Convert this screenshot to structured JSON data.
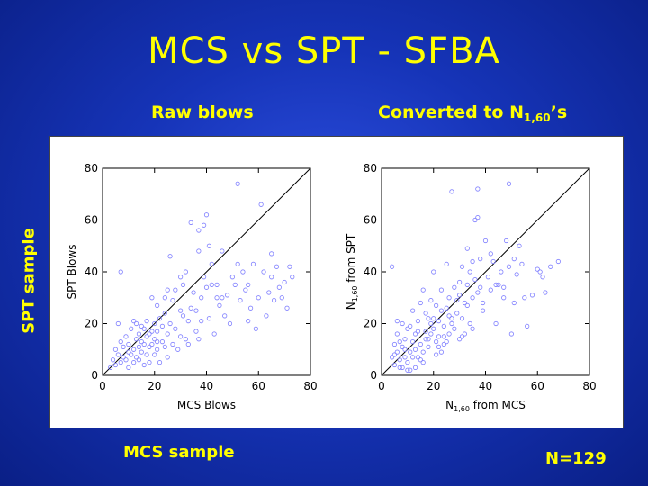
{
  "slide": {
    "title": "MCS vs SPT - SFBA",
    "subtitle_left": "Raw blows",
    "subtitle_right_main": "Converted to N",
    "subtitle_right_sub": "1,60",
    "subtitle_right_suffix": "’s",
    "side_label": "SPT sample",
    "bottom_left": "MCS sample",
    "bottom_right": "N=129"
  },
  "colors": {
    "title": "#ffff00",
    "marker": "#8080ff",
    "background": "#1a3bc8"
  },
  "chart_data": [
    {
      "type": "scatter",
      "xlabel": "MCS Blows",
      "ylabel": "SPT Blows",
      "xlim": [
        0,
        80
      ],
      "ylim": [
        0,
        80
      ],
      "xticks": [
        0,
        20,
        40,
        60,
        80
      ],
      "yticks": [
        0,
        20,
        40,
        60,
        80
      ],
      "reference_line": "1:1",
      "points": [
        [
          3,
          3
        ],
        [
          4,
          6
        ],
        [
          5,
          4
        ],
        [
          5,
          10
        ],
        [
          6,
          8
        ],
        [
          6,
          20
        ],
        [
          7,
          5
        ],
        [
          7,
          40
        ],
        [
          7,
          13
        ],
        [
          8,
          7
        ],
        [
          8,
          11
        ],
        [
          9,
          6
        ],
        [
          9,
          15
        ],
        [
          10,
          9
        ],
        [
          10,
          12
        ],
        [
          10,
          3
        ],
        [
          11,
          18
        ],
        [
          11,
          8
        ],
        [
          12,
          5
        ],
        [
          12,
          10
        ],
        [
          12,
          21
        ],
        [
          13,
          14
        ],
        [
          13,
          20
        ],
        [
          13,
          7
        ],
        [
          14,
          16
        ],
        [
          14,
          11
        ],
        [
          14,
          6
        ],
        [
          15,
          9
        ],
        [
          15,
          19
        ],
        [
          15,
          13
        ],
        [
          16,
          18
        ],
        [
          16,
          4
        ],
        [
          16,
          12
        ],
        [
          17,
          15
        ],
        [
          17,
          21
        ],
        [
          17,
          8
        ],
        [
          18,
          16
        ],
        [
          18,
          11
        ],
        [
          18,
          5
        ],
        [
          19,
          30
        ],
        [
          19,
          12
        ],
        [
          20,
          14
        ],
        [
          20,
          20
        ],
        [
          20,
          8
        ],
        [
          21,
          17
        ],
        [
          21,
          27
        ],
        [
          21,
          10
        ],
        [
          22,
          5
        ],
        [
          22,
          22
        ],
        [
          23,
          19
        ],
        [
          23,
          13
        ],
        [
          24,
          30
        ],
        [
          24,
          11
        ],
        [
          25,
          33
        ],
        [
          25,
          16
        ],
        [
          25,
          7
        ],
        [
          26,
          46
        ],
        [
          26,
          20
        ],
        [
          27,
          12
        ],
        [
          27,
          29
        ],
        [
          28,
          33
        ],
        [
          28,
          18
        ],
        [
          29,
          10
        ],
        [
          30,
          15
        ],
        [
          30,
          25
        ],
        [
          31,
          23
        ],
        [
          31,
          35
        ],
        [
          32,
          14
        ],
        [
          32,
          40
        ],
        [
          33,
          12
        ],
        [
          33,
          21
        ],
        [
          34,
          59
        ],
        [
          34,
          26
        ],
        [
          35,
          32
        ],
        [
          36,
          25
        ],
        [
          36,
          17
        ],
        [
          37,
          56
        ],
        [
          37,
          48
        ],
        [
          37,
          14
        ],
        [
          38,
          30
        ],
        [
          38,
          21
        ],
        [
          39,
          58
        ],
        [
          39,
          38
        ],
        [
          40,
          62
        ],
        [
          40,
          34
        ],
        [
          41,
          50
        ],
        [
          41,
          22
        ],
        [
          42,
          35
        ],
        [
          42,
          43
        ],
        [
          43,
          16
        ],
        [
          44,
          30
        ],
        [
          44,
          35
        ],
        [
          45,
          27
        ],
        [
          46,
          48
        ],
        [
          47,
          23
        ],
        [
          48,
          31
        ],
        [
          49,
          20
        ],
        [
          50,
          38
        ],
        [
          51,
          35
        ],
        [
          52,
          74
        ],
        [
          52,
          43
        ],
        [
          53,
          29
        ],
        [
          54,
          40
        ],
        [
          55,
          33
        ],
        [
          56,
          21
        ],
        [
          57,
          26
        ],
        [
          58,
          43
        ],
        [
          59,
          18
        ],
        [
          60,
          30
        ],
        [
          61,
          66
        ],
        [
          62,
          40
        ],
        [
          63,
          23
        ],
        [
          64,
          32
        ],
        [
          65,
          47
        ],
        [
          65,
          38
        ],
        [
          66,
          29
        ],
        [
          67,
          42
        ],
        [
          68,
          34
        ],
        [
          69,
          30
        ],
        [
          70,
          36
        ],
        [
          71,
          26
        ],
        [
          72,
          42
        ],
        [
          73,
          38
        ],
        [
          56,
          35
        ],
        [
          46,
          30
        ],
        [
          30,
          38
        ],
        [
          24,
          24
        ],
        [
          19,
          17
        ],
        [
          21,
          13
        ]
      ]
    },
    {
      "type": "scatter",
      "xlabel_main": "N",
      "xlabel_sub": "1,60",
      "xlabel_suffix": " from MCS",
      "ylabel_main": "N",
      "ylabel_sub": "1,60",
      "ylabel_suffix": " from SPT",
      "xlim": [
        0,
        80
      ],
      "ylim": [
        0,
        80
      ],
      "xticks": [
        0,
        20,
        40,
        60,
        80
      ],
      "yticks": [
        0,
        20,
        40,
        60,
        80
      ],
      "reference_line": "1:1",
      "points": [
        [
          4,
          42
        ],
        [
          4,
          7
        ],
        [
          5,
          12
        ],
        [
          5,
          4
        ],
        [
          6,
          9
        ],
        [
          6,
          16
        ],
        [
          7,
          3
        ],
        [
          7,
          6
        ],
        [
          8,
          11
        ],
        [
          8,
          20
        ],
        [
          9,
          7
        ],
        [
          9,
          14
        ],
        [
          10,
          5
        ],
        [
          10,
          18
        ],
        [
          11,
          9
        ],
        [
          11,
          2
        ],
        [
          12,
          13
        ],
        [
          12,
          25
        ],
        [
          13,
          10
        ],
        [
          13,
          16
        ],
        [
          14,
          7
        ],
        [
          14,
          21
        ],
        [
          15,
          28
        ],
        [
          15,
          12
        ],
        [
          16,
          9
        ],
        [
          16,
          33
        ],
        [
          17,
          17
        ],
        [
          17,
          14
        ],
        [
          18,
          22
        ],
        [
          18,
          11
        ],
        [
          19,
          29
        ],
        [
          19,
          16
        ],
        [
          20,
          40
        ],
        [
          20,
          18
        ],
        [
          21,
          13
        ],
        [
          21,
          27
        ],
        [
          22,
          21
        ],
        [
          22,
          15
        ],
        [
          23,
          25
        ],
        [
          23,
          33
        ],
        [
          24,
          19
        ],
        [
          24,
          12
        ],
        [
          25,
          43
        ],
        [
          25,
          26
        ],
        [
          26,
          16
        ],
        [
          26,
          30
        ],
        [
          27,
          71
        ],
        [
          27,
          22
        ],
        [
          28,
          34
        ],
        [
          28,
          18
        ],
        [
          29,
          24
        ],
        [
          29,
          29
        ],
        [
          30,
          36
        ],
        [
          30,
          14
        ],
        [
          31,
          22
        ],
        [
          31,
          42
        ],
        [
          32,
          16
        ],
        [
          32,
          28
        ],
        [
          33,
          49
        ],
        [
          33,
          35
        ],
        [
          34,
          40
        ],
        [
          34,
          20
        ],
        [
          35,
          44
        ],
        [
          35,
          30
        ],
        [
          36,
          60
        ],
        [
          36,
          37
        ],
        [
          37,
          72
        ],
        [
          37,
          61
        ],
        [
          38,
          34
        ],
        [
          38,
          45
        ],
        [
          39,
          28
        ],
        [
          40,
          52
        ],
        [
          41,
          38
        ],
        [
          42,
          33
        ],
        [
          43,
          44
        ],
        [
          44,
          20
        ],
        [
          45,
          35
        ],
        [
          46,
          40
        ],
        [
          47,
          30
        ],
        [
          48,
          52
        ],
        [
          49,
          74
        ],
        [
          50,
          16
        ],
        [
          51,
          28
        ],
        [
          52,
          39
        ],
        [
          54,
          43
        ],
        [
          55,
          30
        ],
        [
          56,
          19
        ],
        [
          58,
          31
        ],
        [
          60,
          41
        ],
        [
          61,
          40
        ],
        [
          62,
          38
        ],
        [
          63,
          32
        ],
        [
          65,
          42
        ],
        [
          68,
          44
        ],
        [
          16,
          5
        ],
        [
          13,
          3
        ],
        [
          20,
          22
        ],
        [
          24,
          15
        ],
        [
          11,
          19
        ],
        [
          8,
          3
        ],
        [
          15,
          6
        ],
        [
          18,
          14
        ],
        [
          26,
          23
        ],
        [
          30,
          31
        ],
        [
          9,
          10
        ],
        [
          21,
          8
        ],
        [
          23,
          9
        ],
        [
          10,
          2
        ],
        [
          12,
          7
        ],
        [
          14,
          17
        ],
        [
          17,
          24
        ],
        [
          19,
          20
        ],
        [
          22,
          11
        ],
        [
          25,
          13
        ],
        [
          27,
          20
        ],
        [
          31,
          15
        ],
        [
          33,
          27
        ],
        [
          35,
          18
        ],
        [
          37,
          32
        ],
        [
          39,
          25
        ],
        [
          42,
          47
        ],
        [
          44,
          35
        ],
        [
          47,
          34
        ],
        [
          49,
          42
        ],
        [
          51,
          45
        ],
        [
          53,
          50
        ],
        [
          5,
          8
        ],
        [
          7,
          13
        ],
        [
          6,
          21
        ]
      ]
    }
  ]
}
